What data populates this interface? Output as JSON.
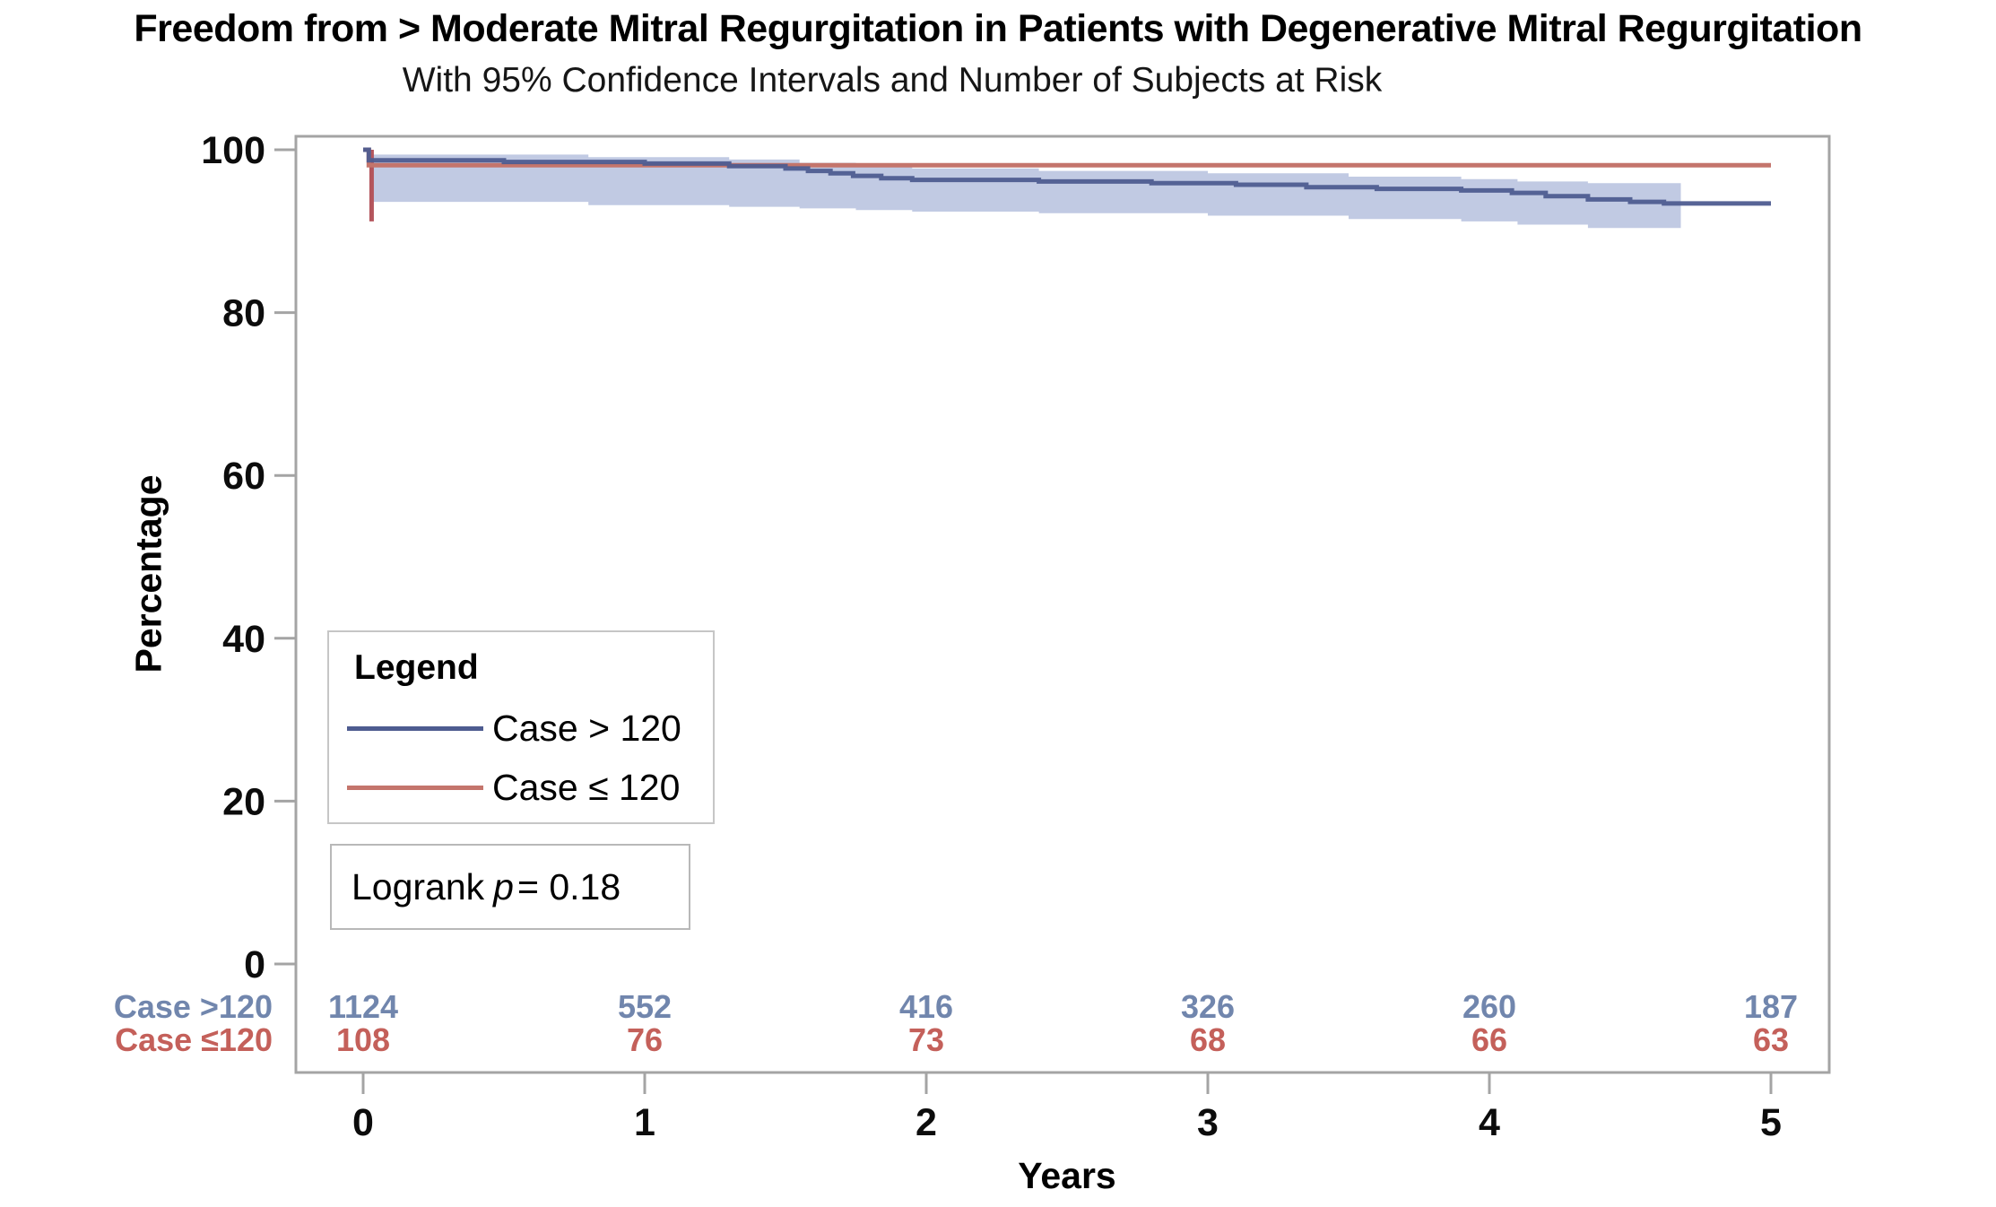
{
  "figure": {
    "title": "Freedom from > Moderate Mitral Regurgitation in Patients with Degenerative Mitral Regurgitation",
    "subtitle": "With 95% Confidence Intervals and Number of Subjects at Risk"
  },
  "axes": {
    "y_label": "Percentage",
    "x_label": "Years",
    "y_ticks": [
      100,
      80,
      60,
      40,
      20,
      0
    ],
    "x_ticks": [
      0,
      1,
      2,
      3,
      4,
      5
    ]
  },
  "legend": {
    "title": "Legend",
    "items": [
      {
        "label": "Case > 120",
        "color": "#4e5c90"
      },
      {
        "label": "Case ≤ 120",
        "color": "#c4756c"
      }
    ]
  },
  "stats": {
    "logrank_prefix": "Logrank",
    "logrank_var": "p",
    "logrank_value": "= 0.18"
  },
  "at_risk": {
    "rows": [
      {
        "label": "Case >120",
        "color": "#7186ad",
        "values": [
          "1124",
          "552",
          "416",
          "326",
          "260",
          "187"
        ]
      },
      {
        "label": "Case ≤120",
        "color": "#c4605a",
        "values": [
          "108",
          "76",
          "73",
          "68",
          "66",
          "63"
        ]
      }
    ]
  },
  "chart_data": {
    "type": "line",
    "subtype": "kaplan-meier-step",
    "title": "Freedom from > Moderate Mitral Regurgitation in Patients with Degenerative Mitral Regurgitation",
    "subtitle": "With 95% Confidence Intervals and Number of Subjects at Risk",
    "xlabel": "Years",
    "ylabel": "Percentage",
    "xlim": [
      0,
      5
    ],
    "ylim": [
      0,
      100
    ],
    "xticks": [
      0,
      1,
      2,
      3,
      4,
      5
    ],
    "yticks": [
      0,
      20,
      40,
      60,
      80,
      100
    ],
    "grid": false,
    "legend_position": "inside-lower-left",
    "logrank_p": "0.18",
    "series": [
      {
        "name": "Case > 120",
        "color": "#4e5c90",
        "points": [
          [
            0,
            100
          ],
          [
            0.02,
            98.7
          ],
          [
            0.5,
            98.5
          ],
          [
            1.0,
            98.3
          ],
          [
            1.3,
            98.0
          ],
          [
            1.5,
            97.7
          ],
          [
            1.58,
            97.4
          ],
          [
            1.66,
            97.1
          ],
          [
            1.74,
            96.8
          ],
          [
            1.84,
            96.5
          ],
          [
            1.95,
            96.3
          ],
          [
            2.4,
            96.1
          ],
          [
            2.8,
            95.9
          ],
          [
            3.1,
            95.7
          ],
          [
            3.35,
            95.4
          ],
          [
            3.6,
            95.2
          ],
          [
            3.9,
            95.0
          ],
          [
            4.08,
            94.7
          ],
          [
            4.2,
            94.3
          ],
          [
            4.35,
            93.9
          ],
          [
            4.5,
            93.6
          ],
          [
            4.62,
            93.4
          ],
          [
            5,
            93.4
          ]
        ]
      },
      {
        "name": "Case ≤ 120",
        "color": "#c4756c",
        "points": [
          [
            0,
            100
          ],
          [
            0.02,
            98.1
          ],
          [
            5,
            98.1
          ]
        ]
      }
    ],
    "confidence_band": {
      "series": "Case > 120",
      "color": "#b6c1de",
      "opacity": 0.85,
      "upper": [
        [
          0.03,
          99.4
        ],
        [
          0.8,
          99.1
        ],
        [
          1.3,
          98.8
        ],
        [
          1.55,
          98.4
        ],
        [
          1.75,
          98.0
        ],
        [
          1.95,
          97.7
        ],
        [
          2.4,
          97.4
        ],
        [
          3.0,
          97.1
        ],
        [
          3.5,
          96.7
        ],
        [
          3.9,
          96.4
        ],
        [
          4.1,
          96.1
        ],
        [
          4.35,
          95.9
        ],
        [
          4.68,
          95.8
        ]
      ],
      "lower": [
        [
          0.03,
          93.6
        ],
        [
          0.8,
          93.2
        ],
        [
          1.3,
          93.0
        ],
        [
          1.55,
          92.8
        ],
        [
          1.75,
          92.6
        ],
        [
          1.95,
          92.4
        ],
        [
          2.4,
          92.2
        ],
        [
          3.0,
          91.9
        ],
        [
          3.5,
          91.5
        ],
        [
          3.9,
          91.2
        ],
        [
          4.1,
          90.8
        ],
        [
          4.35,
          90.4
        ],
        [
          4.68,
          90.1
        ]
      ]
    },
    "baseline_whisker": {
      "series": "Case ≤ 120",
      "x": 0.03,
      "y_from": 91.2,
      "y_to": 100,
      "color": "#b4555c"
    },
    "at_risk": {
      "times": [
        0,
        1,
        2,
        3,
        4,
        5
      ],
      "groups": [
        {
          "name": "Case >120",
          "counts": [
            1124,
            552,
            416,
            326,
            260,
            187
          ]
        },
        {
          "name": "Case ≤120",
          "counts": [
            108,
            76,
            73,
            68,
            66,
            63
          ]
        }
      ]
    }
  }
}
